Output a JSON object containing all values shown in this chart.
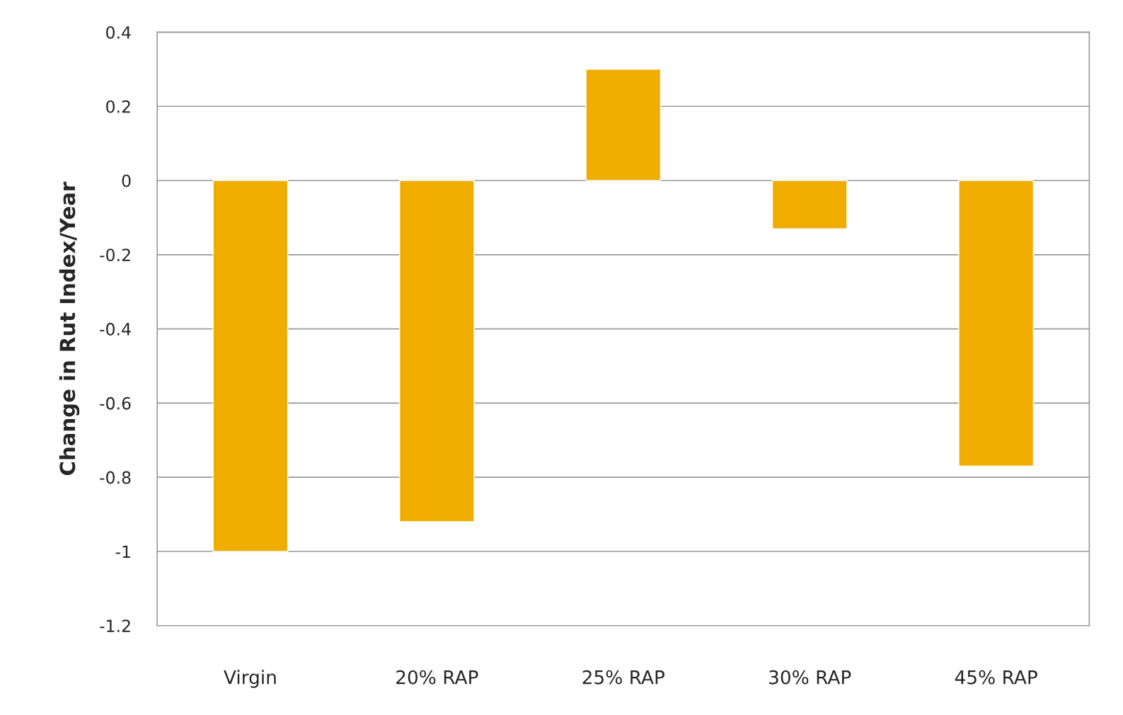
{
  "chart_data": {
    "type": "bar",
    "ylabel": "Change in Rut Index/Year",
    "categories": [
      "Virgin",
      "20% RAP",
      "25% RAP",
      "30% RAP",
      "45% RAP"
    ],
    "values": [
      -1.0,
      -0.92,
      0.3,
      -0.13,
      -0.77
    ],
    "color": "#f0ad00",
    "ylim": [
      -1.2,
      0.4
    ],
    "yticks": [
      {
        "value": -1.2,
        "label": "-1.2"
      },
      {
        "value": -1,
        "label": "-1"
      },
      {
        "value": -0.8,
        "label": "-0.8"
      },
      {
        "value": -0.6,
        "label": "-0.6"
      },
      {
        "value": -0.4,
        "label": "-0.4"
      },
      {
        "value": -0.2,
        "label": "-0.2"
      },
      {
        "value": 0,
        "label": "0"
      },
      {
        "value": 0.2,
        "label": "0.2"
      },
      {
        "value": 0.4,
        "label": "0.4"
      }
    ],
    "grid": "y"
  }
}
